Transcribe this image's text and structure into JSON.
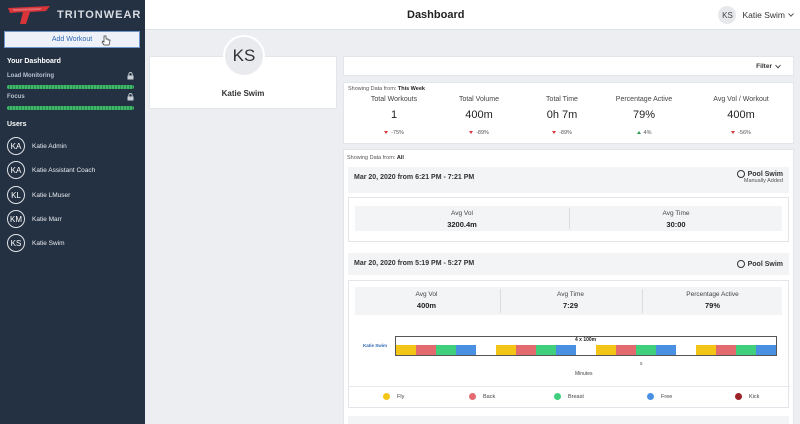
{
  "sidebar": {
    "brand": "TRITONWEAR",
    "add_workout": "Add Workout",
    "your_dashboard": "Your Dashboard",
    "monitors": [
      {
        "label": "Load Monitoring"
      },
      {
        "label": "Focus"
      }
    ],
    "users_title": "Users",
    "users": [
      {
        "initials": "KA",
        "name": "Katie Admin"
      },
      {
        "initials": "KA",
        "name": "Katie Assistant Coach"
      },
      {
        "initials": "KL",
        "name": "Katie LMuser"
      },
      {
        "initials": "KM",
        "name": "Katie Marr"
      },
      {
        "initials": "KS",
        "name": "Katie Swim"
      }
    ],
    "colors": {
      "background": "#243143",
      "accent": "#d8343a",
      "bar": "#3fb86a"
    }
  },
  "header": {
    "title": "Dashboard",
    "user_initials": "KS",
    "user_name": "Katie Swim"
  },
  "profile": {
    "initials": "KS",
    "name": "Katie Swim"
  },
  "filter": {
    "label": "Filter"
  },
  "summary": {
    "showing_prefix": "Showing Data from:",
    "showing_value": "This Week",
    "stats": [
      {
        "label": "Total Workouts",
        "value": "1",
        "delta": "-75%",
        "trend": "down"
      },
      {
        "label": "Total Volume",
        "value": "400m",
        "delta": "-89%",
        "trend": "down"
      },
      {
        "label": "Total Time",
        "value": "0h 7m",
        "delta": "-89%",
        "trend": "down"
      },
      {
        "label": "Percentage Active",
        "value": "79%",
        "delta": "4%",
        "trend": "up"
      },
      {
        "label": "Avg Vol / Workout",
        "value": "400m",
        "delta": "-56%",
        "trend": "down"
      }
    ]
  },
  "workouts": {
    "showing_prefix": "Showing Data from:",
    "showing_value": "All",
    "items": [
      {
        "date": "Mar 20, 2020 from 6:21 PM - 7:21 PM",
        "type": "Pool Swim",
        "subtype": "Manually Added",
        "stats": [
          {
            "label": "Avg Vol",
            "value": "3200.4m"
          },
          {
            "label": "Avg Time",
            "value": "30:00"
          }
        ]
      },
      {
        "date": "Mar 20, 2020 from 5:19 PM - 5:27 PM",
        "type": "Pool Swim",
        "stats": [
          {
            "label": "Avg Vol",
            "value": "400m"
          },
          {
            "label": "Avg Time",
            "value": "7:29"
          },
          {
            "label": "Percentage Active",
            "value": "79%"
          }
        ],
        "timeline": {
          "swimmer": "Katie Swim",
          "set_label": "4 x 100m",
          "tick": "5",
          "axis_label": "Minutes",
          "segments": [
            "Fly",
            "Back",
            "Breast",
            "Free",
            "rest",
            "Fly",
            "Back",
            "Breast",
            "Free",
            "rest",
            "Fly",
            "Back",
            "Breast",
            "Free",
            "rest",
            "Fly",
            "Back",
            "Breast",
            "Free"
          ]
        }
      }
    ],
    "legend": [
      {
        "label": "Fly",
        "color": "#f2c516"
      },
      {
        "label": "Back",
        "color": "#e36a6e"
      },
      {
        "label": "Breast",
        "color": "#3fcf7d"
      },
      {
        "label": "Free",
        "color": "#4a90e2"
      },
      {
        "label": "Kick",
        "color": "#9b2226"
      }
    ]
  }
}
